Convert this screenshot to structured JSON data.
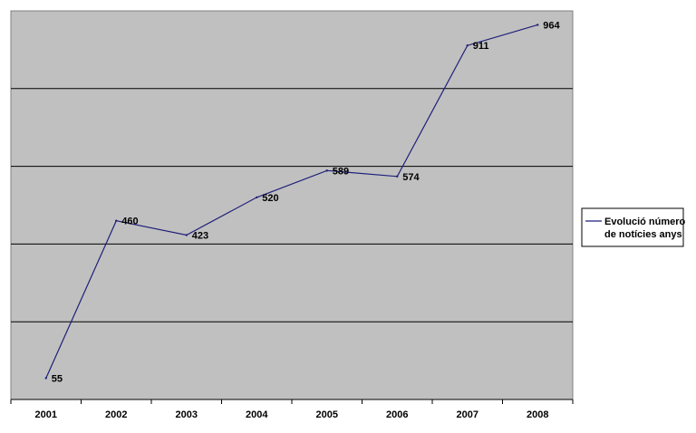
{
  "chart_data": {
    "type": "line",
    "categories": [
      "2001",
      "2002",
      "2003",
      "2004",
      "2005",
      "2006",
      "2007",
      "2008"
    ],
    "series": [
      {
        "name": "Evolució número de notícies anys",
        "values": [
          55,
          460,
          423,
          520,
          589,
          574,
          911,
          964
        ]
      }
    ],
    "ylim": [
      0,
      1000
    ],
    "y_gridline_step": 200,
    "grid": true,
    "y_tick_labels_shown": false,
    "data_labels_shown": true,
    "legend_placement": "right",
    "legend_lines": [
      "Evolució número",
      "de notícies anys"
    ],
    "colors": {
      "plot_background": "#c0c0c0",
      "line": "#1f1f7a",
      "gridline": "#000000",
      "page_background": "#ffffff"
    }
  }
}
